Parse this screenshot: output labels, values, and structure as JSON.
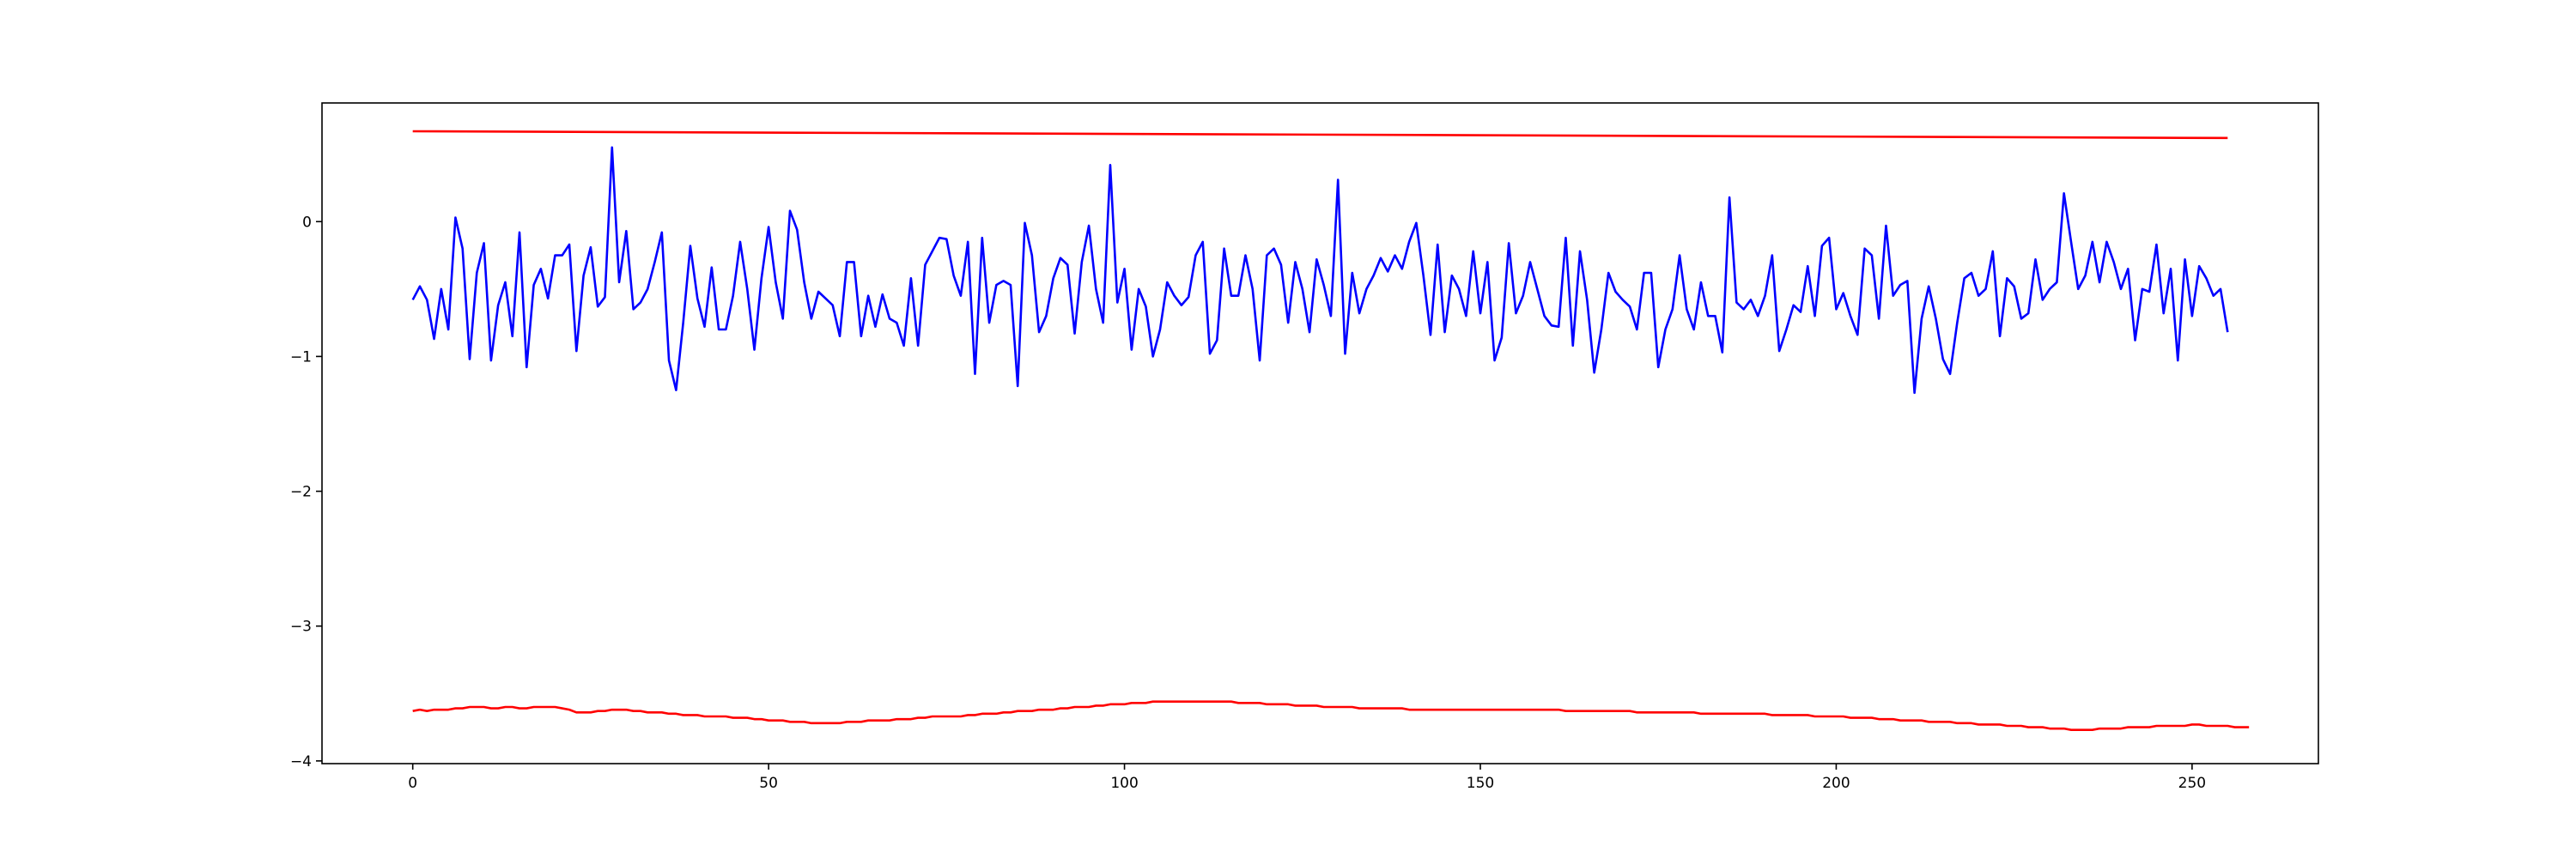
{
  "chart_data": {
    "type": "line",
    "title": "",
    "xlabel": "",
    "ylabel": "",
    "xlim": [
      -12.75,
      267.75
    ],
    "ylim": [
      -4.02,
      0.88
    ],
    "grid": false,
    "legend": "none",
    "x_ticks": [
      0,
      50,
      100,
      150,
      200,
      250
    ],
    "x_tick_labels": [
      "0",
      "50",
      "100",
      "150",
      "200",
      "250"
    ],
    "y_ticks": [
      -4,
      -3,
      -2,
      -1,
      0
    ],
    "y_tick_labels": [
      "−4",
      "−3",
      "−2",
      "−1",
      "0"
    ],
    "series": [
      {
        "color": "#0000ff",
        "x_start": 0,
        "x_step": 1,
        "y": [
          -0.58,
          -0.48,
          -0.58,
          -0.87,
          -0.5,
          -0.8,
          0.03,
          -0.2,
          -1.02,
          -0.38,
          -0.16,
          -1.03,
          -0.62,
          -0.45,
          -0.85,
          -0.08,
          -1.08,
          -0.47,
          -0.35,
          -0.57,
          -0.25,
          -0.25,
          -0.17,
          -0.96,
          -0.4,
          -0.19,
          -0.63,
          -0.56,
          0.55,
          -0.45,
          -0.07,
          -0.65,
          -0.6,
          -0.5,
          -0.3,
          -0.08,
          -1.03,
          -1.25,
          -0.75,
          -0.18,
          -0.57,
          -0.78,
          -0.34,
          -0.8,
          -0.8,
          -0.55,
          -0.15,
          -0.5,
          -0.95,
          -0.42,
          -0.04,
          -0.45,
          -0.72,
          0.08,
          -0.06,
          -0.45,
          -0.72,
          -0.52,
          -0.57,
          -0.62,
          -0.85,
          -0.3,
          -0.3,
          -0.85,
          -0.55,
          -0.78,
          -0.54,
          -0.72,
          -0.75,
          -0.92,
          -0.42,
          -0.92,
          -0.32,
          -0.22,
          -0.12,
          -0.13,
          -0.4,
          -0.55,
          -0.15,
          -1.13,
          -0.12,
          -0.75,
          -0.47,
          -0.44,
          -0.47,
          -1.22,
          -0.01,
          -0.25,
          -0.82,
          -0.7,
          -0.42,
          -0.27,
          -0.32,
          -0.83,
          -0.3,
          -0.03,
          -0.5,
          -0.75,
          0.42,
          -0.6,
          -0.35,
          -0.95,
          -0.5,
          -0.63,
          -1.0,
          -0.8,
          -0.45,
          -0.55,
          -0.62,
          -0.56,
          -0.25,
          -0.15,
          -0.98,
          -0.88,
          -0.2,
          -0.55,
          -0.55,
          -0.25,
          -0.5,
          -1.03,
          -0.25,
          -0.2,
          -0.32,
          -0.75,
          -0.3,
          -0.5,
          -0.82,
          -0.28,
          -0.47,
          -0.7,
          0.31,
          -0.98,
          -0.38,
          -0.68,
          -0.5,
          -0.4,
          -0.27,
          -0.37,
          -0.25,
          -0.35,
          -0.15,
          -0.01,
          -0.4,
          -0.84,
          -0.17,
          -0.82,
          -0.4,
          -0.5,
          -0.7,
          -0.22,
          -0.68,
          -0.3,
          -1.03,
          -0.86,
          -0.16,
          -0.68,
          -0.55,
          -0.3,
          -0.5,
          -0.7,
          -0.77,
          -0.78,
          -0.12,
          -0.92,
          -0.22,
          -0.58,
          -1.12,
          -0.8,
          -0.38,
          -0.52,
          -0.58,
          -0.63,
          -0.8,
          -0.38,
          -0.38,
          -1.08,
          -0.8,
          -0.65,
          -0.25,
          -0.65,
          -0.8,
          -0.45,
          -0.7,
          -0.7,
          -0.97,
          0.18,
          -0.6,
          -0.65,
          -0.58,
          -0.7,
          -0.55,
          -0.25,
          -0.96,
          -0.8,
          -0.62,
          -0.67,
          -0.33,
          -0.7,
          -0.18,
          -0.12,
          -0.65,
          -0.53,
          -0.7,
          -0.84,
          -0.2,
          -0.25,
          -0.72,
          -0.03,
          -0.55,
          -0.47,
          -0.44,
          -1.27,
          -0.72,
          -0.48,
          -0.72,
          -1.02,
          -1.13,
          -0.75,
          -0.42,
          -0.38,
          -0.55,
          -0.5,
          -0.22,
          -0.85,
          -0.42,
          -0.48,
          -0.72,
          -0.68,
          -0.28,
          -0.58,
          -0.5,
          -0.45,
          0.21,
          -0.15,
          -0.5,
          -0.4,
          -0.15,
          -0.45,
          -0.15,
          -0.3,
          -0.5,
          -0.35,
          -0.88,
          -0.5,
          -0.52,
          -0.17,
          -0.68,
          -0.35,
          -1.03,
          -0.28,
          -0.7,
          -0.33,
          -0.42,
          -0.55,
          -0.5,
          -0.82
        ]
      },
      {
        "color": "#ff0000",
        "x_start": 0,
        "x_step": 1,
        "y": [
          -3.63,
          -3.62,
          -3.63,
          -3.62,
          -3.62,
          -3.62,
          -3.61,
          -3.61,
          -3.6,
          -3.6,
          -3.6,
          -3.61,
          -3.61,
          -3.6,
          -3.6,
          -3.61,
          -3.61,
          -3.6,
          -3.6,
          -3.6,
          -3.6,
          -3.61,
          -3.62,
          -3.64,
          -3.64,
          -3.64,
          -3.63,
          -3.63,
          -3.62,
          -3.62,
          -3.62,
          -3.63,
          -3.63,
          -3.64,
          -3.64,
          -3.64,
          -3.65,
          -3.65,
          -3.66,
          -3.66,
          -3.66,
          -3.67,
          -3.67,
          -3.67,
          -3.67,
          -3.68,
          -3.68,
          -3.68,
          -3.69,
          -3.69,
          -3.7,
          -3.7,
          -3.7,
          -3.71,
          -3.71,
          -3.71,
          -3.72,
          -3.72,
          -3.72,
          -3.72,
          -3.72,
          -3.71,
          -3.71,
          -3.71,
          -3.7,
          -3.7,
          -3.7,
          -3.7,
          -3.69,
          -3.69,
          -3.69,
          -3.68,
          -3.68,
          -3.67,
          -3.67,
          -3.67,
          -3.67,
          -3.67,
          -3.66,
          -3.66,
          -3.65,
          -3.65,
          -3.65,
          -3.64,
          -3.64,
          -3.63,
          -3.63,
          -3.63,
          -3.62,
          -3.62,
          -3.62,
          -3.61,
          -3.61,
          -3.6,
          -3.6,
          -3.6,
          -3.59,
          -3.59,
          -3.58,
          -3.58,
          -3.58,
          -3.57,
          -3.57,
          -3.57,
          -3.56,
          -3.56,
          -3.56,
          -3.56,
          -3.56,
          -3.56,
          -3.56,
          -3.56,
          -3.56,
          -3.56,
          -3.56,
          -3.56,
          -3.57,
          -3.57,
          -3.57,
          -3.57,
          -3.58,
          -3.58,
          -3.58,
          -3.58,
          -3.59,
          -3.59,
          -3.59,
          -3.59,
          -3.6,
          -3.6,
          -3.6,
          -3.6,
          -3.6,
          -3.61,
          -3.61,
          -3.61,
          -3.61,
          -3.61,
          -3.61,
          -3.61,
          -3.62,
          -3.62,
          -3.62,
          -3.62,
          -3.62,
          -3.62,
          -3.62,
          -3.62,
          -3.62,
          -3.62,
          -3.62,
          -3.62,
          -3.62,
          -3.62,
          -3.62,
          -3.62,
          -3.62,
          -3.62,
          -3.62,
          -3.62,
          -3.62,
          -3.62,
          -3.63,
          -3.63,
          -3.63,
          -3.63,
          -3.63,
          -3.63,
          -3.63,
          -3.63,
          -3.63,
          -3.63,
          -3.64,
          -3.64,
          -3.64,
          -3.64,
          -3.64,
          -3.64,
          -3.64,
          -3.64,
          -3.64,
          -3.65,
          -3.65,
          -3.65,
          -3.65,
          -3.65,
          -3.65,
          -3.65,
          -3.65,
          -3.65,
          -3.65,
          -3.66,
          -3.66,
          -3.66,
          -3.66,
          -3.66,
          -3.66,
          -3.67,
          -3.67,
          -3.67,
          -3.67,
          -3.67,
          -3.68,
          -3.68,
          -3.68,
          -3.68,
          -3.69,
          -3.69,
          -3.69,
          -3.7,
          -3.7,
          -3.7,
          -3.7,
          -3.71,
          -3.71,
          -3.71,
          -3.71,
          -3.72,
          -3.72,
          -3.72,
          -3.73,
          -3.73,
          -3.73,
          -3.73,
          -3.74,
          -3.74,
          -3.74,
          -3.75,
          -3.75,
          -3.75,
          -3.76,
          -3.76,
          -3.76,
          -3.77,
          -3.77,
          -3.77,
          -3.77,
          -3.76,
          -3.76,
          -3.76,
          -3.76,
          -3.75,
          -3.75,
          -3.75,
          -3.75,
          -3.74,
          -3.74,
          -3.74,
          -3.74,
          -3.74,
          -3.73,
          -3.73,
          -3.74,
          -3.74,
          -3.74,
          -3.74,
          -3.75,
          -3.75,
          -3.75
        ]
      },
      {
        "color": "#ff0000",
        "x": [
          0,
          255
        ],
        "y": [
          0.67,
          0.62
        ]
      }
    ]
  }
}
